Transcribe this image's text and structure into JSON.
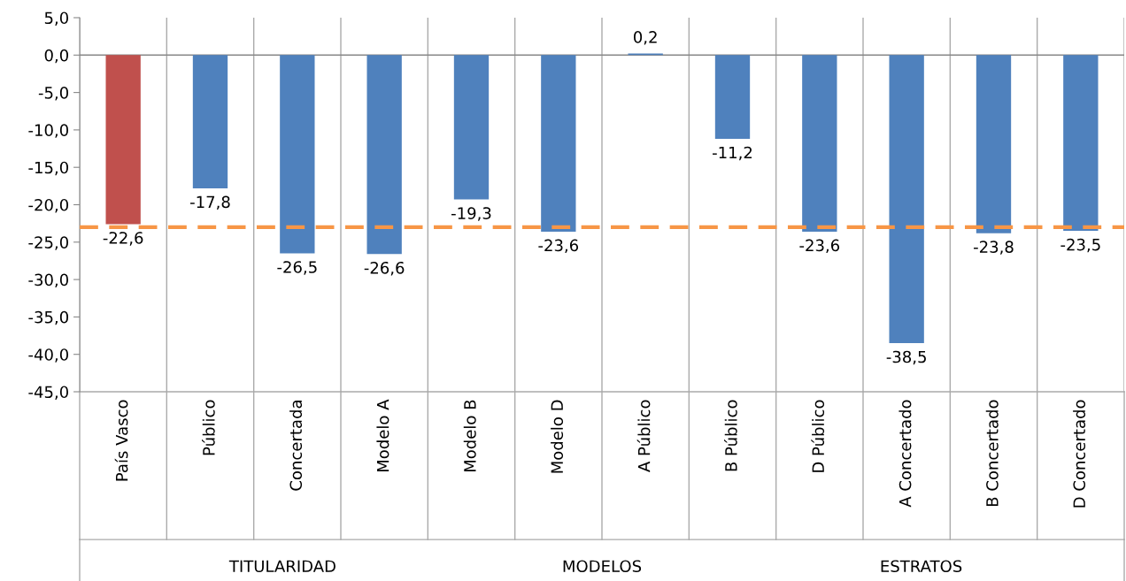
{
  "chart_data": {
    "type": "bar",
    "categories": [
      "País Vasco",
      "Público",
      "Concertada",
      "Modelo A",
      "Modelo B",
      "Modelo D",
      "A Público",
      "B Público",
      "D Público",
      "A Concertado",
      "B Concertado",
      "D Concertado"
    ],
    "values": [
      -22.6,
      -17.8,
      -26.5,
      -26.6,
      -19.3,
      -23.6,
      0.2,
      -11.2,
      -23.6,
      -38.5,
      -23.8,
      -23.5
    ],
    "colors": [
      "#c0504d",
      "#4f81bd",
      "#4f81bd",
      "#4f81bd",
      "#4f81bd",
      "#4f81bd",
      "#4f81bd",
      "#4f81bd",
      "#4f81bd",
      "#4f81bd",
      "#4f81bd",
      "#4f81bd"
    ],
    "value_labels": [
      "-22,6",
      "-17,8",
      "-26,5",
      "-26,6",
      "-19,3",
      "-23,6",
      "0,2",
      "-11,2",
      "-23,6",
      "-38,5",
      "-23,8",
      "-23,5"
    ],
    "ylim": [
      -45,
      5
    ],
    "yticks": [
      {
        "value": 5,
        "label": "5,0"
      },
      {
        "value": 0,
        "label": "0,0"
      },
      {
        "value": -5,
        "label": "-5,0"
      },
      {
        "value": -10,
        "label": "-10,0"
      },
      {
        "value": -15,
        "label": "-15,0"
      },
      {
        "value": -20,
        "label": "-20,0"
      },
      {
        "value": -25,
        "label": "-25,0"
      },
      {
        "value": -30,
        "label": "-30,0"
      },
      {
        "value": -35,
        "label": "-35,0"
      },
      {
        "value": -40,
        "label": "-40,0"
      },
      {
        "value": -45,
        "label": "-45,0"
      }
    ],
    "ref_lines": [
      {
        "axis": "y",
        "value": -23.0,
        "color": "#f79646",
        "line_style": "dashed"
      }
    ],
    "annotations": [
      "TITULARIDAD",
      "MODELOS",
      "ESTRATOS"
    ],
    "grid": "x"
  }
}
